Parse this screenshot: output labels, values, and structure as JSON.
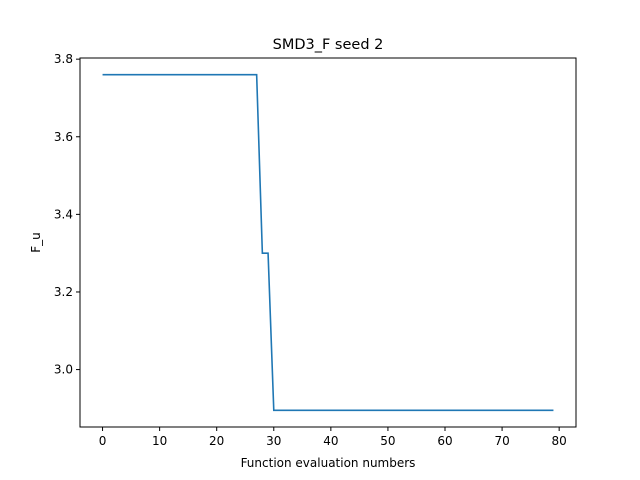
{
  "chart_data": {
    "type": "line",
    "title": "SMD3_F seed 2",
    "xlabel": "Function evaluation numbers",
    "ylabel": "F_u",
    "xlim": [
      -3.95,
      82.95
    ],
    "ylim": [
      2.852,
      3.803
    ],
    "xticks": [
      0,
      10,
      20,
      30,
      40,
      50,
      60,
      70,
      80
    ],
    "yticks": [
      3.0,
      3.2,
      3.4,
      3.6,
      3.8
    ],
    "ytick_labels": [
      "3.0",
      "3.2",
      "3.4",
      "3.6",
      "3.8"
    ],
    "grid": false,
    "legend": false,
    "series": [
      {
        "color": "#1f77b4",
        "x": [
          0,
          27,
          28,
          29,
          30,
          79
        ],
        "y": [
          3.76,
          3.76,
          3.3,
          3.3,
          2.895,
          2.895
        ]
      }
    ]
  }
}
